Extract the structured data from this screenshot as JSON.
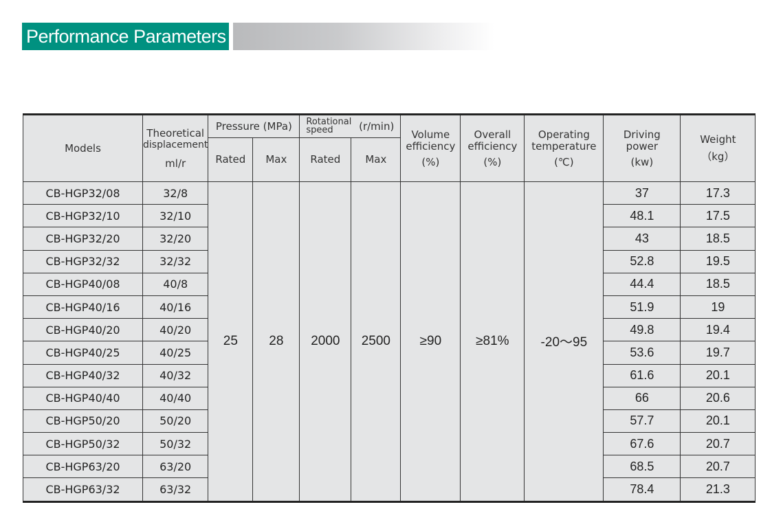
{
  "title": "Performance Parameters",
  "colors": {
    "title_bg": "#009180",
    "table_bg": "#e4e5e6"
  },
  "headers": {
    "models": "Models",
    "displacement": [
      "Theoretical",
      "displacement",
      "ml/r"
    ],
    "pressure": "Pressure (MPa)",
    "speed_label": [
      "Rotational",
      "speed"
    ],
    "speed_unit": "(r/min)",
    "rated": "Rated",
    "max": "Max",
    "volume_eff": [
      "Volume",
      "efficiency",
      "(%)"
    ],
    "overall_eff": [
      "Overall",
      "efficiency",
      "(%)"
    ],
    "temp": [
      "Operating",
      "temperature",
      "(℃)"
    ],
    "power": [
      "Driving",
      "power",
      "(kw)"
    ],
    "weight": [
      "Weight",
      "（kg）"
    ]
  },
  "shared": {
    "pressure_rated": "25",
    "pressure_max": "28",
    "speed_rated": "2000",
    "speed_max": "2500",
    "volume_eff": "≥90",
    "overall_eff": "≥81%",
    "temp": "-20～95"
  },
  "rows": [
    {
      "model": "CB-HGP32/08",
      "disp": "32/8",
      "power": "37",
      "weight": "17.3"
    },
    {
      "model": "CB-HGP32/10",
      "disp": "32/10",
      "power": "48.1",
      "weight": "17.5"
    },
    {
      "model": "CB-HGP32/20",
      "disp": "32/20",
      "power": "43",
      "weight": "18.5"
    },
    {
      "model": "CB-HGP32/32",
      "disp": "32/32",
      "power": "52.8",
      "weight": "19.5"
    },
    {
      "model": "CB-HGP40/08",
      "disp": "40/8",
      "power": "44.4",
      "weight": "18.5"
    },
    {
      "model": "CB-HGP40/16",
      "disp": "40/16",
      "power": "51.9",
      "weight": "19"
    },
    {
      "model": "CB-HGP40/20",
      "disp": "40/20",
      "power": "49.8",
      "weight": "19.4"
    },
    {
      "model": "CB-HGP40/25",
      "disp": "40/25",
      "power": "53.6",
      "weight": "19.7"
    },
    {
      "model": "CB-HGP40/32",
      "disp": "40/32",
      "power": "61.6",
      "weight": "20.1"
    },
    {
      "model": "CB-HGP40/40",
      "disp": "40/40",
      "power": "66",
      "weight": "20.6"
    },
    {
      "model": "CB-HGP50/20",
      "disp": "50/20",
      "power": "57.7",
      "weight": "20.1"
    },
    {
      "model": "CB-HGP50/32",
      "disp": "50/32",
      "power": "67.6",
      "weight": "20.7"
    },
    {
      "model": "CB-HGP63/20",
      "disp": "63/20",
      "power": "68.5",
      "weight": "20.7"
    },
    {
      "model": "CB-HGP63/32",
      "disp": "63/32",
      "power": "78.4",
      "weight": "21.3"
    }
  ]
}
